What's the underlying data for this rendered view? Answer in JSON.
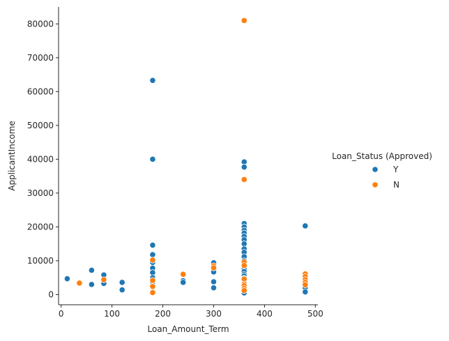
{
  "chart_data": {
    "type": "scatter",
    "xlabel": "Loan_Amount_Term",
    "ylabel": "ApplicantIncome",
    "xlim": [
      -5,
      505
    ],
    "ylim": [
      -3000,
      85000
    ],
    "xticks": [
      0,
      100,
      200,
      300,
      400,
      500
    ],
    "yticks": [
      0,
      10000,
      20000,
      30000,
      40000,
      50000,
      60000,
      70000,
      80000
    ],
    "grid": false,
    "legend": {
      "title": "Loan_Status (Approved)",
      "placement": "right",
      "entries": [
        {
          "label": "Y",
          "color": "#1f77b4"
        },
        {
          "label": "N",
          "color": "#ff7f0e"
        }
      ]
    },
    "series": [
      {
        "name": "Y",
        "color": "#1f77b4",
        "points": [
          [
            12,
            4700
          ],
          [
            60,
            7200
          ],
          [
            60,
            3000
          ],
          [
            84,
            5800
          ],
          [
            84,
            3300
          ],
          [
            120,
            3600
          ],
          [
            120,
            1400
          ],
          [
            180,
            63300
          ],
          [
            180,
            40000
          ],
          [
            180,
            14600
          ],
          [
            180,
            11800
          ],
          [
            180,
            9500
          ],
          [
            180,
            7800
          ],
          [
            180,
            6500
          ],
          [
            180,
            5000
          ],
          [
            180,
            4200
          ],
          [
            180,
            3700
          ],
          [
            240,
            4100
          ],
          [
            240,
            3600
          ],
          [
            300,
            9400
          ],
          [
            300,
            8200
          ],
          [
            300,
            7300
          ],
          [
            300,
            6700
          ],
          [
            300,
            3800
          ],
          [
            300,
            2000
          ],
          [
            360,
            39200
          ],
          [
            360,
            37700
          ],
          [
            360,
            21000
          ],
          [
            360,
            20000
          ],
          [
            360,
            19000
          ],
          [
            360,
            18200
          ],
          [
            360,
            17200
          ],
          [
            360,
            16200
          ],
          [
            360,
            15000
          ],
          [
            360,
            13500
          ],
          [
            360,
            12500
          ],
          [
            360,
            11200
          ],
          [
            360,
            10000
          ],
          [
            360,
            9200
          ],
          [
            360,
            8300
          ],
          [
            360,
            7600
          ],
          [
            360,
            6800
          ],
          [
            360,
            6000
          ],
          [
            360,
            5500
          ],
          [
            360,
            4800
          ],
          [
            360,
            4000
          ],
          [
            360,
            3500
          ],
          [
            360,
            3000
          ],
          [
            360,
            2500
          ],
          [
            360,
            2000
          ],
          [
            360,
            1500
          ],
          [
            360,
            1000
          ],
          [
            360,
            500
          ],
          [
            480,
            20300
          ],
          [
            480,
            3000
          ],
          [
            480,
            2000
          ],
          [
            480,
            800
          ]
        ]
      },
      {
        "name": "N",
        "color": "#ff7f0e",
        "points": [
          [
            36,
            3400
          ],
          [
            84,
            4400
          ],
          [
            180,
            10200
          ],
          [
            180,
            4200
          ],
          [
            180,
            2400
          ],
          [
            180,
            600
          ],
          [
            240,
            6000
          ],
          [
            300,
            8500
          ],
          [
            300,
            7900
          ],
          [
            360,
            81000
          ],
          [
            360,
            34000
          ],
          [
            360,
            9600
          ],
          [
            360,
            8600
          ],
          [
            360,
            4600
          ],
          [
            360,
            3100
          ],
          [
            360,
            2600
          ],
          [
            360,
            1800
          ],
          [
            360,
            1200
          ],
          [
            480,
            6100
          ],
          [
            480,
            5300
          ],
          [
            480,
            4400
          ],
          [
            480,
            3600
          ],
          [
            480,
            2900
          ]
        ]
      }
    ]
  }
}
